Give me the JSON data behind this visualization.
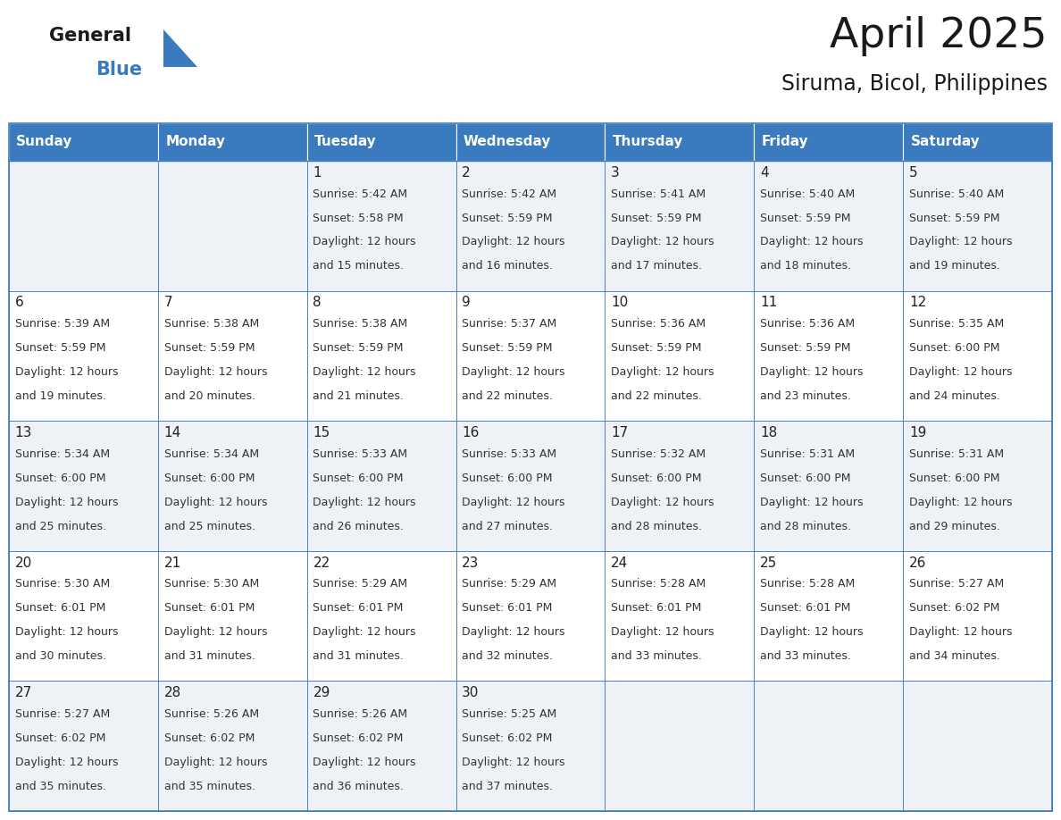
{
  "title": "April 2025",
  "subtitle": "Siruma, Bicol, Philippines",
  "header_bg": "#3a7bbf",
  "header_text_color": "#ffffff",
  "cell_bg_odd": "#eef2f7",
  "cell_bg_even": "#ffffff",
  "border_color": "#3a7bbf",
  "text_color": "#333333",
  "days_of_week": [
    "Sunday",
    "Monday",
    "Tuesday",
    "Wednesday",
    "Thursday",
    "Friday",
    "Saturday"
  ],
  "calendar_data": [
    [
      {
        "day": "",
        "sunrise": "",
        "sunset": "",
        "daylight": ""
      },
      {
        "day": "",
        "sunrise": "",
        "sunset": "",
        "daylight": ""
      },
      {
        "day": "1",
        "sunrise": "5:42 AM",
        "sunset": "5:58 PM",
        "daylight": "12 hours\nand 15 minutes."
      },
      {
        "day": "2",
        "sunrise": "5:42 AM",
        "sunset": "5:59 PM",
        "daylight": "12 hours\nand 16 minutes."
      },
      {
        "day": "3",
        "sunrise": "5:41 AM",
        "sunset": "5:59 PM",
        "daylight": "12 hours\nand 17 minutes."
      },
      {
        "day": "4",
        "sunrise": "5:40 AM",
        "sunset": "5:59 PM",
        "daylight": "12 hours\nand 18 minutes."
      },
      {
        "day": "5",
        "sunrise": "5:40 AM",
        "sunset": "5:59 PM",
        "daylight": "12 hours\nand 19 minutes."
      }
    ],
    [
      {
        "day": "6",
        "sunrise": "5:39 AM",
        "sunset": "5:59 PM",
        "daylight": "12 hours\nand 19 minutes."
      },
      {
        "day": "7",
        "sunrise": "5:38 AM",
        "sunset": "5:59 PM",
        "daylight": "12 hours\nand 20 minutes."
      },
      {
        "day": "8",
        "sunrise": "5:38 AM",
        "sunset": "5:59 PM",
        "daylight": "12 hours\nand 21 minutes."
      },
      {
        "day": "9",
        "sunrise": "5:37 AM",
        "sunset": "5:59 PM",
        "daylight": "12 hours\nand 22 minutes."
      },
      {
        "day": "10",
        "sunrise": "5:36 AM",
        "sunset": "5:59 PM",
        "daylight": "12 hours\nand 22 minutes."
      },
      {
        "day": "11",
        "sunrise": "5:36 AM",
        "sunset": "5:59 PM",
        "daylight": "12 hours\nand 23 minutes."
      },
      {
        "day": "12",
        "sunrise": "5:35 AM",
        "sunset": "6:00 PM",
        "daylight": "12 hours\nand 24 minutes."
      }
    ],
    [
      {
        "day": "13",
        "sunrise": "5:34 AM",
        "sunset": "6:00 PM",
        "daylight": "12 hours\nand 25 minutes."
      },
      {
        "day": "14",
        "sunrise": "5:34 AM",
        "sunset": "6:00 PM",
        "daylight": "12 hours\nand 25 minutes."
      },
      {
        "day": "15",
        "sunrise": "5:33 AM",
        "sunset": "6:00 PM",
        "daylight": "12 hours\nand 26 minutes."
      },
      {
        "day": "16",
        "sunrise": "5:33 AM",
        "sunset": "6:00 PM",
        "daylight": "12 hours\nand 27 minutes."
      },
      {
        "day": "17",
        "sunrise": "5:32 AM",
        "sunset": "6:00 PM",
        "daylight": "12 hours\nand 28 minutes."
      },
      {
        "day": "18",
        "sunrise": "5:31 AM",
        "sunset": "6:00 PM",
        "daylight": "12 hours\nand 28 minutes."
      },
      {
        "day": "19",
        "sunrise": "5:31 AM",
        "sunset": "6:00 PM",
        "daylight": "12 hours\nand 29 minutes."
      }
    ],
    [
      {
        "day": "20",
        "sunrise": "5:30 AM",
        "sunset": "6:01 PM",
        "daylight": "12 hours\nand 30 minutes."
      },
      {
        "day": "21",
        "sunrise": "5:30 AM",
        "sunset": "6:01 PM",
        "daylight": "12 hours\nand 31 minutes."
      },
      {
        "day": "22",
        "sunrise": "5:29 AM",
        "sunset": "6:01 PM",
        "daylight": "12 hours\nand 31 minutes."
      },
      {
        "day": "23",
        "sunrise": "5:29 AM",
        "sunset": "6:01 PM",
        "daylight": "12 hours\nand 32 minutes."
      },
      {
        "day": "24",
        "sunrise": "5:28 AM",
        "sunset": "6:01 PM",
        "daylight": "12 hours\nand 33 minutes."
      },
      {
        "day": "25",
        "sunrise": "5:28 AM",
        "sunset": "6:01 PM",
        "daylight": "12 hours\nand 33 minutes."
      },
      {
        "day": "26",
        "sunrise": "5:27 AM",
        "sunset": "6:02 PM",
        "daylight": "12 hours\nand 34 minutes."
      }
    ],
    [
      {
        "day": "27",
        "sunrise": "5:27 AM",
        "sunset": "6:02 PM",
        "daylight": "12 hours\nand 35 minutes."
      },
      {
        "day": "28",
        "sunrise": "5:26 AM",
        "sunset": "6:02 PM",
        "daylight": "12 hours\nand 35 minutes."
      },
      {
        "day": "29",
        "sunrise": "5:26 AM",
        "sunset": "6:02 PM",
        "daylight": "12 hours\nand 36 minutes."
      },
      {
        "day": "30",
        "sunrise": "5:25 AM",
        "sunset": "6:02 PM",
        "daylight": "12 hours\nand 37 minutes."
      },
      {
        "day": "",
        "sunrise": "",
        "sunset": "",
        "daylight": ""
      },
      {
        "day": "",
        "sunrise": "",
        "sunset": "",
        "daylight": ""
      },
      {
        "day": "",
        "sunrise": "",
        "sunset": "",
        "daylight": ""
      }
    ]
  ]
}
